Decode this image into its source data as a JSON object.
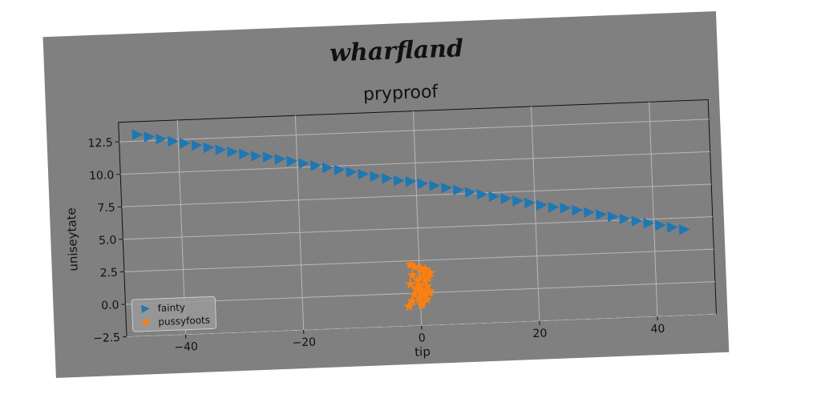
{
  "figure": {
    "suptitle": "wharfland",
    "background": "#808080",
    "page_background": "#ffffff"
  },
  "chart_data": {
    "type": "scatter",
    "title": "pryproof",
    "xlabel": "tip",
    "ylabel": "uniseytate",
    "xlim": [
      -50,
      50
    ],
    "ylim": [
      -2.5,
      14.0
    ],
    "xticks": [
      -40,
      -20,
      0,
      20,
      40
    ],
    "yticks": [
      -2.5,
      0.0,
      2.5,
      5.0,
      7.5,
      10.0,
      12.5
    ],
    "xtick_labels": [
      "−40",
      "−20",
      "0",
      "20",
      "40"
    ],
    "ytick_labels": [
      "−2.5",
      "0.0",
      "2.5",
      "5.0",
      "7.5",
      "10.0",
      "12.5"
    ],
    "grid": true,
    "legend_position": "lower-left",
    "series": [
      {
        "name": "fainty",
        "marker": "triangle-right",
        "color": "#1f77b4",
        "x": [
          -47,
          -45,
          -43,
          -41,
          -39,
          -37,
          -35,
          -33,
          -31,
          -29,
          -27,
          -25,
          -23,
          -21,
          -19,
          -17,
          -15,
          -13,
          -11,
          -9,
          -7,
          -5,
          -3,
          -1,
          1,
          3,
          5,
          7,
          9,
          11,
          13,
          15,
          17,
          19,
          21,
          23,
          25,
          27,
          29,
          31,
          33,
          35,
          37,
          39,
          41,
          43,
          45
        ],
        "y": [
          13.0,
          12.8,
          12.6,
          12.4,
          12.2,
          12.0,
          11.8,
          11.6,
          11.4,
          11.2,
          11.0,
          10.9,
          10.7,
          10.5,
          10.3,
          10.1,
          9.9,
          9.7,
          9.5,
          9.3,
          9.1,
          8.9,
          8.7,
          8.6,
          8.4,
          8.2,
          8.0,
          7.8,
          7.6,
          7.4,
          7.2,
          7.0,
          6.8,
          6.6,
          6.4,
          6.2,
          6.1,
          5.9,
          5.7,
          5.5,
          5.3,
          5.1,
          4.9,
          4.7,
          4.5,
          4.3,
          4.1
        ]
      },
      {
        "name": "pussyfoots",
        "marker": "star",
        "color": "#ff7f0e",
        "x": [
          -1.5,
          -0.8,
          0.2,
          1.0,
          1.8,
          -1.2,
          0.5,
          1.4,
          -0.4,
          0.9,
          -1.6,
          0.0,
          1.2,
          -0.6,
          0.4,
          1.6,
          -1.0,
          0.7,
          -0.2,
          1.1,
          -1.4,
          0.3,
          1.5,
          -0.5,
          0.8,
          -2.0,
          0.1
        ],
        "y": [
          2.2,
          2.0,
          1.9,
          1.8,
          1.5,
          1.4,
          1.3,
          1.1,
          1.0,
          0.9,
          0.7,
          0.6,
          0.5,
          0.3,
          0.2,
          0.1,
          -0.1,
          -0.2,
          -0.4,
          -0.5,
          -0.6,
          -0.8,
          0.0,
          0.4,
          1.6,
          -1.0,
          -0.9
        ]
      }
    ]
  }
}
